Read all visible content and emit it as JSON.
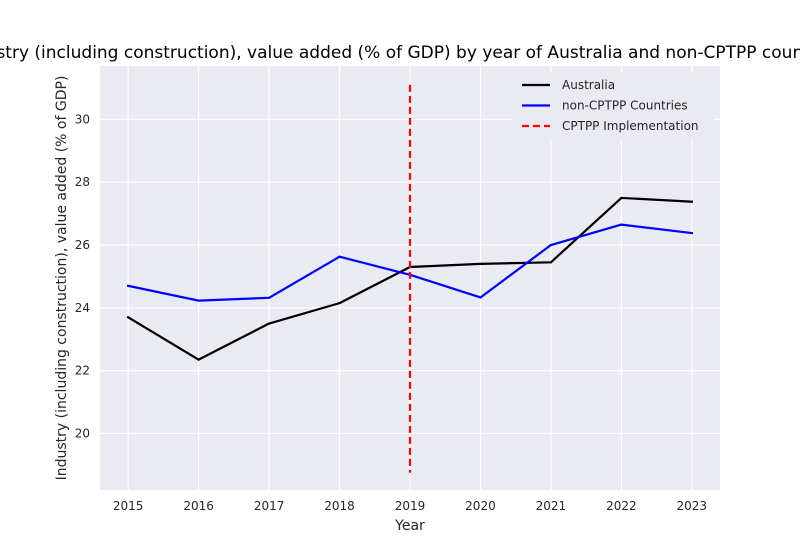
{
  "chart_data": {
    "type": "line",
    "title": "Industry (including construction), value added (% of GDP) by year of Australia and non-CPTPP countries",
    "xlabel": "Year",
    "ylabel": "Industry (including construction), value added (% of GDP)",
    "x": [
      2015,
      2016,
      2017,
      2018,
      2019,
      2020,
      2021,
      2022,
      2023
    ],
    "xlim": [
      2014.6,
      2023.4
    ],
    "ylim": [
      18.2,
      31.7
    ],
    "yticks": [
      20,
      22,
      24,
      26,
      28,
      30
    ],
    "grid": true,
    "legend_position": "top-right",
    "series": [
      {
        "name": "Australia",
        "color": "#000000",
        "style": "solid",
        "values": [
          23.7,
          22.35,
          23.5,
          24.15,
          25.3,
          25.4,
          25.45,
          27.5,
          27.38
        ]
      },
      {
        "name": "non-CPTPP Countries",
        "color": "#0000ff",
        "style": "solid",
        "values": [
          24.7,
          24.23,
          24.32,
          25.63,
          25.05,
          24.33,
          26.0,
          26.65,
          26.38
        ]
      }
    ],
    "annotations": [
      {
        "name": "CPTPP Implementation",
        "type": "vline",
        "x": 2019,
        "y_range": [
          18.75,
          31.1
        ],
        "color": "#ff0000",
        "style": "dashed"
      }
    ]
  }
}
